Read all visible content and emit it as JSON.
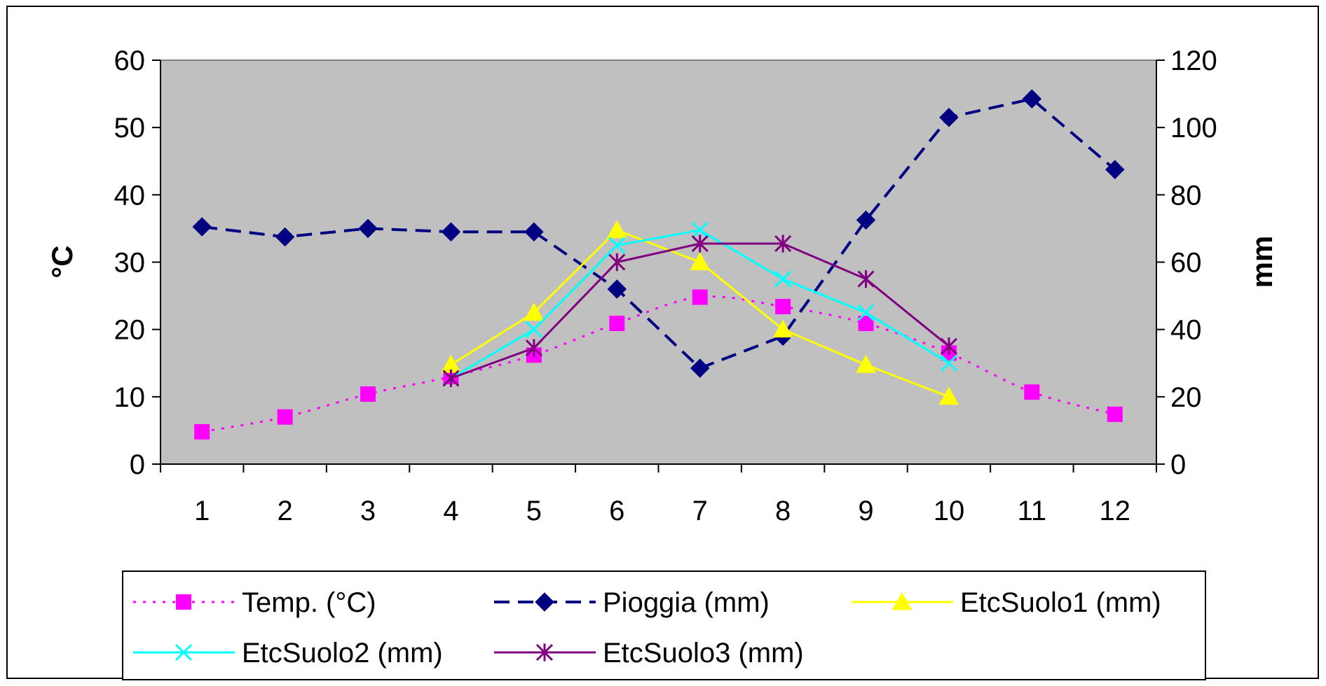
{
  "chart_data": {
    "type": "line",
    "title": "",
    "xlabel": "",
    "ylabel": "°C",
    "y2label": "mm",
    "ylim": [
      0,
      60
    ],
    "y2lim": [
      0,
      120
    ],
    "yticks": [
      "0",
      "10",
      "20",
      "30",
      "40",
      "50",
      "60"
    ],
    "y2ticks": [
      "0",
      "20",
      "40",
      "60",
      "80",
      "100",
      "120"
    ],
    "categories": [
      "1",
      "2",
      "3",
      "4",
      "5",
      "6",
      "7",
      "8",
      "9",
      "10",
      "11",
      "12"
    ],
    "grid": false,
    "legend_position": "bottom",
    "plot_background": "#c0c0c0",
    "series": [
      {
        "name": "Temp. (°C)",
        "axis": "left",
        "color": "#ff00ff",
        "marker": "square",
        "dash": "dotted",
        "values": [
          4.8,
          7.0,
          10.4,
          13.0,
          16.2,
          20.9,
          24.8,
          23.4,
          20.9,
          16.5,
          10.7,
          7.4
        ]
      },
      {
        "name": "Pioggia (mm)",
        "axis": "right",
        "color": "#000080",
        "marker": "diamond",
        "dash": "dashed",
        "values": [
          70.5,
          67.5,
          70.0,
          69.0,
          69.0,
          52.0,
          28.5,
          38.0,
          72.5,
          103.0,
          108.5,
          87.5
        ]
      },
      {
        "name": "EtcSuolo1 (mm)",
        "axis": "right",
        "color": "#ffff00",
        "marker": "triangle",
        "dash": "solid",
        "values": [
          null,
          null,
          null,
          29.5,
          45.0,
          69.5,
          60.0,
          40.0,
          29.5,
          20.0,
          null,
          null
        ]
      },
      {
        "name": "EtcSuolo2 (mm)",
        "axis": "right",
        "color": "#00ffff",
        "marker": "x",
        "dash": "solid",
        "values": [
          null,
          null,
          null,
          25.5,
          40.0,
          65.0,
          69.5,
          55.0,
          45.0,
          30.0,
          null,
          null
        ]
      },
      {
        "name": "EtcSuolo3 (mm)",
        "axis": "right",
        "color": "#800080",
        "marker": "star",
        "dash": "solid",
        "values": [
          null,
          null,
          null,
          25.5,
          34.5,
          60.0,
          65.5,
          65.5,
          55.0,
          35.0,
          null,
          null
        ]
      }
    ]
  }
}
